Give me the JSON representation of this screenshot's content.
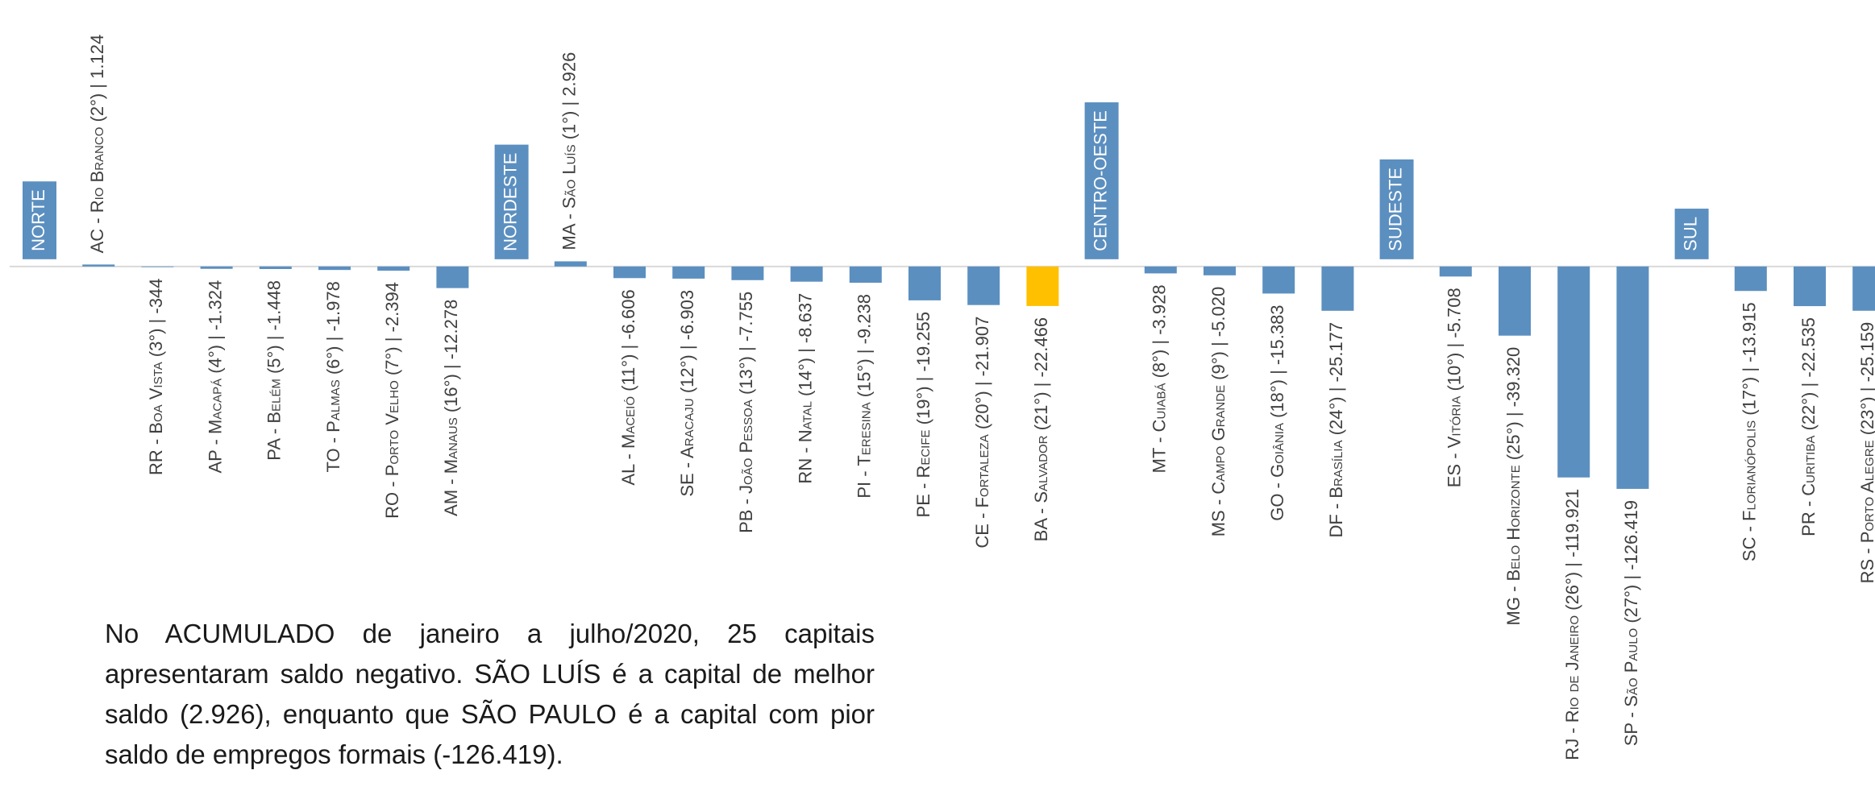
{
  "chart_data": {
    "type": "bar",
    "color": "#5b8fc0",
    "region_color": "#5b8fc0",
    "highlight_color": "#ffc000",
    "highlight": {
      "group": 1,
      "index": 8
    },
    "ylim": [
      -140000,
      10000
    ],
    "groups": [
      {
        "name": "NORTE",
        "categories": [
          "AC - Rio Branco (2°) | 1.124",
          "RR - Boa Vista (3°) | -344",
          "AP - Macapá (4°) | -1.324",
          "PA - Belém (5°) | -1.448",
          "TO - Palmas (6°) | -1.978",
          "RO - Porto Velho (7°) | -2.394",
          "AM - Manaus (16°) | -12.278"
        ],
        "values": [
          1124,
          -344,
          -1324,
          -1448,
          -1978,
          -2394,
          -12278
        ]
      },
      {
        "name": "NORDESTE",
        "categories": [
          "MA - São Luís (1°) | 2.926",
          "AL - Maceió (11°) | -6.606",
          "SE - Aracaju (12°) | -6.903",
          "PB - João Pessoa (13°) | -7.755",
          "RN - Natal (14°) | -8.637",
          "PI - Teresina (15°) | -9.238",
          "PE - Recife (19°) | -19.255",
          "CE - Fortaleza (20°) | -21.907",
          "BA - Salvador (21°) | -22.466"
        ],
        "values": [
          2926,
          -6606,
          -6903,
          -7755,
          -8637,
          -9238,
          -19255,
          -21907,
          -22466
        ]
      },
      {
        "name": "CENTRO-OESTE",
        "categories": [
          "MT - Cuiabá (8°) | -3.928",
          "MS - Campo Grande (9°) | -5.020",
          "GO - Goiânia (18°) | -15.383",
          "DF - Brasília (24°) | -25.177"
        ],
        "values": [
          -3928,
          -5020,
          -15383,
          -25177
        ]
      },
      {
        "name": "SUDESTE",
        "categories": [
          "ES - Vitória (10°) | -5.708",
          "MG - Belo Horizonte (25°) | -39.320",
          "RJ - Rio de Janeiro (26°) | -119.921",
          "SP - São Paulo (27°) | -126.419"
        ],
        "values": [
          -5708,
          -39320,
          -119921,
          -126419
        ]
      },
      {
        "name": "SUL",
        "categories": [
          "SC - Florianópolis (17°) | -13.915",
          "PR - Curitiba (22°) | -22.535",
          "RS - Porto Alegre (23°) | -25.159"
        ],
        "values": [
          -13915,
          -22535,
          -25159
        ]
      }
    ],
    "annotation": "No ACUMULADO de janeiro a julho/2020, 25 capitais apresentaram saldo negativo. SÃO LUÍS é a capital de melhor saldo (2.926), enquanto que SÃO PAULO é a capital com pior saldo de empregos formais (-126.419)."
  }
}
